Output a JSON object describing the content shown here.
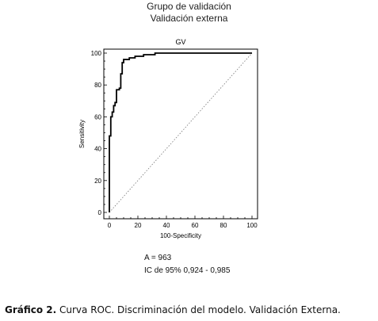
{
  "header": {
    "line1": "Grupo de validación",
    "line2": "Validación externa"
  },
  "chart_data": {
    "type": "line",
    "title": "GV",
    "xlabel": "100-Specificity",
    "ylabel": "Sensitivity",
    "xlim": [
      0,
      100
    ],
    "ylim": [
      0,
      100
    ],
    "x_ticks": [
      0,
      20,
      40,
      60,
      80,
      100
    ],
    "y_ticks": [
      0,
      20,
      40,
      60,
      80,
      100
    ],
    "grid": false,
    "reference_line": "diagonal",
    "series": [
      {
        "color": "#000000",
        "step": true,
        "points": [
          [
            0,
            0
          ],
          [
            0,
            48
          ],
          [
            1,
            48
          ],
          [
            1,
            60
          ],
          [
            2,
            60
          ],
          [
            2,
            63
          ],
          [
            3,
            63
          ],
          [
            3,
            67
          ],
          [
            4,
            67
          ],
          [
            4,
            69
          ],
          [
            5,
            69
          ],
          [
            5,
            77
          ],
          [
            7,
            77
          ],
          [
            7,
            78
          ],
          [
            8,
            78
          ],
          [
            8,
            87
          ],
          [
            9,
            87
          ],
          [
            9,
            94
          ],
          [
            10,
            94
          ],
          [
            10,
            96
          ],
          [
            14,
            96
          ],
          [
            14,
            97
          ],
          [
            18,
            97
          ],
          [
            18,
            98
          ],
          [
            24,
            98
          ],
          [
            24,
            99
          ],
          [
            32,
            99
          ],
          [
            32,
            100
          ],
          [
            100,
            100
          ]
        ]
      }
    ]
  },
  "stats": {
    "area": "A = 963",
    "ci": "IC de 95% 0,924 - 0,985"
  },
  "caption": {
    "label": "Gráfico 2.",
    "text": " Curva ROC. Discriminación del modelo. Validación Externa."
  }
}
